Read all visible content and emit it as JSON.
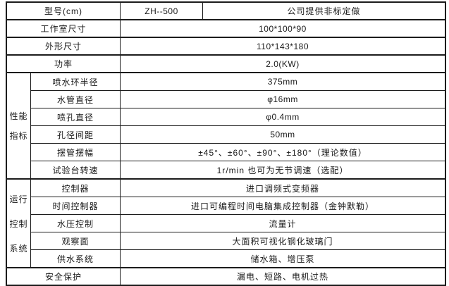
{
  "colors": {
    "border": "#1c1c1c",
    "text": "#1a1a1a",
    "background": "#ffffff"
  },
  "table": {
    "model_row": {
      "label": "型号(cm)",
      "model": "ZH--500",
      "note": "公司提供非标定做"
    },
    "simple_rows": [
      {
        "label": "工作室尺寸",
        "value": "100*100*90"
      },
      {
        "label": "外形尺寸",
        "value": "110*143*180"
      },
      {
        "label": "功率",
        "value": "2.0(KW)"
      }
    ],
    "performance": {
      "group_label_lines": [
        "性能",
        "指标"
      ],
      "rows": [
        {
          "label": "喷水环半径",
          "value": "375mm"
        },
        {
          "label": "水管直径",
          "value": "φ16mm"
        },
        {
          "label": "喷孔直径",
          "value": "φ0.4mm"
        },
        {
          "label": "孔径间距",
          "value": "50mm"
        },
        {
          "label": "摆管摆幅",
          "value": "±45°、±60°、±90°、±180°（理论数值）"
        },
        {
          "label": "试验台转速",
          "value": "1r/min 也可为无节调速（选配）"
        }
      ]
    },
    "control": {
      "group_label_lines": [
        "运行",
        "控制",
        "系统"
      ],
      "rows": [
        {
          "label": "控制器",
          "value": "进口调频式变频器"
        },
        {
          "label": "时间控制器",
          "value": "进口可编程时间电脑集成控制器（金钟默勒）"
        },
        {
          "label": "水压控制",
          "value": "流量计"
        },
        {
          "label": "观察面",
          "value": "大面积可视化钢化玻璃门"
        },
        {
          "label": "供水系统",
          "value": "储水箱、增压泵"
        }
      ]
    },
    "safety_row": {
      "label": "安全保护",
      "value": "漏电、短路、电机过热"
    }
  }
}
